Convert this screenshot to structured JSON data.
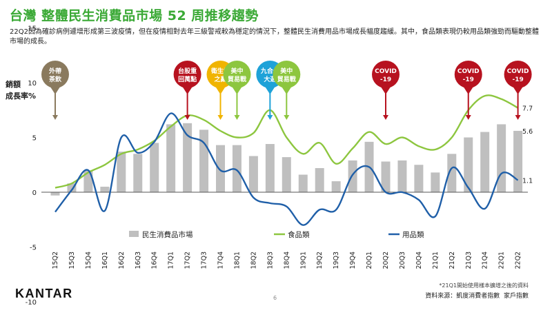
{
  "title": "台灣 整體民生消費品市場 52 周推移趨勢",
  "subtitle": "22Q2因為確診病例遽增形成第三波疫情，但在疫情相對去年三級警戒較為穩定的情況下，整體民生消費用品市場成長幅度趨緩。其中，食品類表現仍較用品類強勁而驅動整體市場的成長。",
  "logo": "KANTAR",
  "page_number": "6",
  "footnote": "*21Q1開始使用樣本擴增之後的資料",
  "source": "資料來源：凱度消費者指數  家戶指數",
  "colors": {
    "bars": "#bfbfbf",
    "food": "#8dc63f",
    "goods": "#1f5fa8",
    "title": "#3aa935"
  },
  "chart_data": {
    "type": "bar+line",
    "ylabel": "銷額 成長率%",
    "ylim": [
      -10,
      20
    ],
    "yticks": [
      -10,
      -5,
      0,
      5,
      10,
      15,
      20
    ],
    "categories": [
      "15Q2",
      "15Q3",
      "15Q4",
      "16Q1",
      "16Q2",
      "16Q3",
      "16Q4",
      "17Q1",
      "17Q2",
      "17Q3",
      "17Q4",
      "18Q1",
      "18Q2",
      "18Q3",
      "18Q4",
      "19Q1",
      "19Q2",
      "19Q3",
      "19Q4",
      "20Q1",
      "20Q2",
      "20Q3",
      "20Q4",
      "21Q1",
      "21Q2",
      "21Q3",
      "21Q4",
      "22Q1",
      "22Q2"
    ],
    "series": [
      {
        "name": "民生消費品市場",
        "kind": "bar",
        "values": [
          -0.3,
          0.8,
          2.0,
          0.5,
          3.7,
          3.5,
          4.5,
          6.2,
          6.3,
          5.7,
          4.3,
          4.3,
          3.3,
          4.4,
          3.2,
          1.6,
          2.2,
          1.0,
          2.9,
          4.6,
          2.8,
          2.9,
          2.5,
          1.8,
          3.5,
          5.0,
          5.5,
          6.2,
          5.6
        ]
      },
      {
        "name": "食品類",
        "kind": "line",
        "values": [
          0.4,
          0.8,
          1.8,
          2.5,
          3.5,
          3.9,
          4.7,
          6.0,
          7.0,
          6.6,
          5.6,
          5.0,
          5.4,
          7.5,
          5.0,
          3.5,
          4.5,
          2.6,
          4.0,
          5.5,
          4.4,
          5.0,
          4.2,
          3.9,
          5.0,
          7.5,
          8.8,
          8.5,
          7.7
        ]
      },
      {
        "name": "用品類",
        "kind": "line",
        "values": [
          -1.8,
          0.2,
          2.0,
          -1.7,
          5.0,
          3.6,
          4.6,
          7.2,
          5.2,
          4.5,
          2.0,
          2.0,
          -0.5,
          -1.0,
          -1.3,
          -3.0,
          -1.6,
          -1.6,
          1.6,
          2.3,
          0.0,
          0.0,
          -0.7,
          -2.2,
          2.2,
          0.4,
          -1.5,
          1.7,
          1.1
        ]
      }
    ],
    "end_labels": [
      "7.7",
      "5.6",
      "1.1"
    ],
    "legend_position": "bottom",
    "grid": false
  },
  "events": [
    {
      "index": 0,
      "lines": [
        "外帶",
        "茶飲"
      ],
      "color": "#8a7a5e"
    },
    {
      "index": 8,
      "lines": [
        "台股重",
        "回萬點"
      ],
      "color": "#b7121f"
    },
    {
      "index": 10,
      "lines": [
        "衛生紙",
        "之亂"
      ],
      "color": "#f0b400"
    },
    {
      "index": 11,
      "lines": [
        "美中",
        "貿易戰"
      ],
      "color": "#8dc63f"
    },
    {
      "index": 13,
      "lines": [
        "九合一",
        "大選"
      ],
      "color": "#1ea2d8"
    },
    {
      "index": 14,
      "lines": [
        "美中",
        "貿易戰"
      ],
      "color": "#8dc63f"
    },
    {
      "index": 20,
      "lines": [
        "COVID",
        "-19"
      ],
      "color": "#b7121f"
    },
    {
      "index": 25,
      "lines": [
        "COVID",
        "-19"
      ],
      "color": "#b7121f"
    },
    {
      "index": 28,
      "lines": [
        "COVID",
        "-19"
      ],
      "color": "#b7121f"
    }
  ]
}
